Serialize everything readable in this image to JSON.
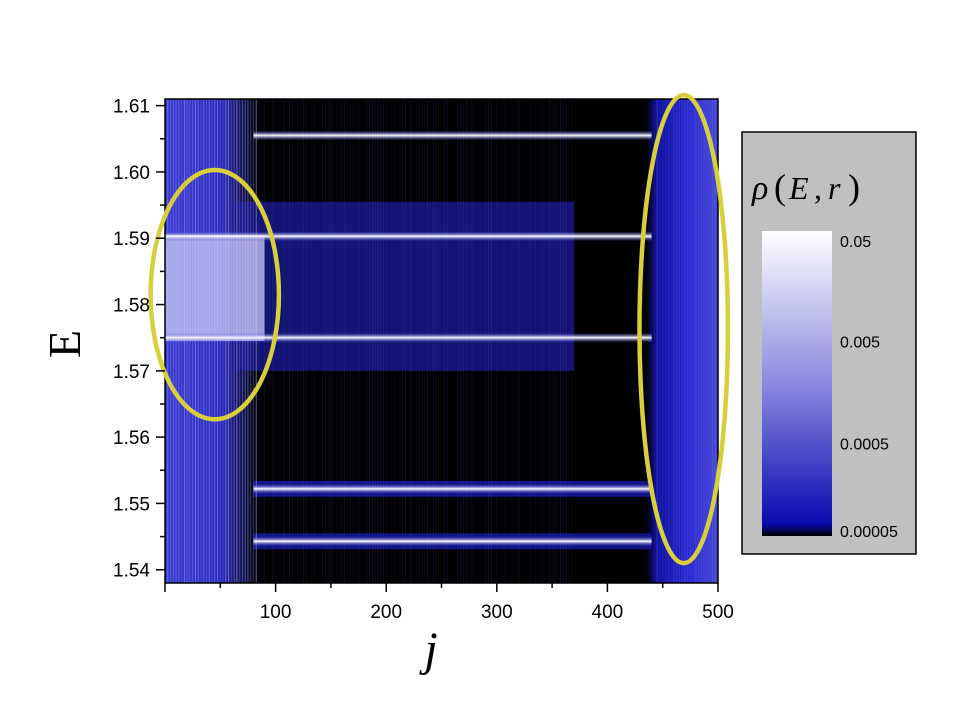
{
  "chart_data": {
    "type": "heatmap",
    "xlabel": "j",
    "ylabel": "E",
    "xlim": [
      0,
      500
    ],
    "ylim": [
      1.538,
      1.611
    ],
    "x_ticks": [
      "100",
      "200",
      "300",
      "400",
      "500"
    ],
    "x_tick_values": [
      100,
      200,
      300,
      400,
      500
    ],
    "y_ticks": [
      "1.54",
      "1.55",
      "1.56",
      "1.57",
      "1.58",
      "1.59",
      "1.60",
      "1.61"
    ],
    "y_tick_values": [
      1.54,
      1.55,
      1.56,
      1.57,
      1.58,
      1.59,
      1.6,
      1.61
    ],
    "colorbar": {
      "title_symbol": "ρ",
      "title_args": [
        "E",
        "r"
      ],
      "scale": "log",
      "tick_labels": [
        "0.05",
        "0.005",
        "0.0005",
        "0.00005"
      ],
      "tick_values": [
        0.05,
        0.005,
        0.0005,
        5e-05
      ],
      "colors": [
        "#ffffff",
        "#1010c0",
        "#000000"
      ]
    },
    "bands": [
      {
        "E": 1.6055,
        "x_start": 80,
        "x_end": 440
      },
      {
        "E": 1.5903,
        "x_start": 0,
        "x_end": 440
      },
      {
        "E": 1.575,
        "x_start": 0,
        "x_end": 440
      },
      {
        "E": 1.5522,
        "x_start": 80,
        "x_end": 440
      },
      {
        "E": 1.5443,
        "x_start": 80,
        "x_end": 440
      }
    ],
    "highlight_ellipses": [
      {
        "x_center": 45,
        "E_center": 1.5815,
        "x_radius": 58,
        "E_radius": 0.0188
      },
      {
        "x_center": 469,
        "E_center": 1.5763,
        "x_radius": 40,
        "E_radius": 0.0353
      }
    ],
    "highlight_color": "#d8cf3c"
  }
}
